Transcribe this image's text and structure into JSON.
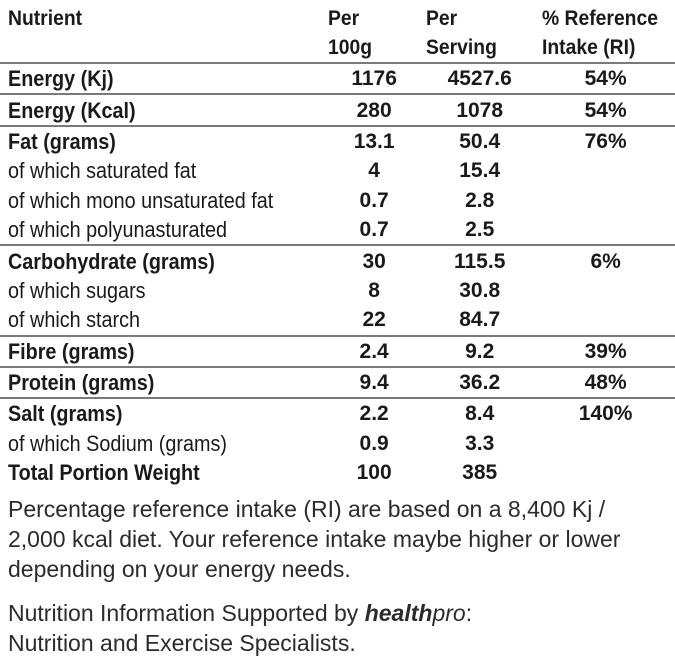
{
  "header": {
    "nutrient": "Nutrient",
    "per100_line1": "Per",
    "per100_line2": "100g",
    "perserving_line1": "Per",
    "perserving_line2": "Serving",
    "ri_line1": "% Reference",
    "ri_line2": "Intake (RI)"
  },
  "rows": [
    {
      "name": "Energy (Kj)",
      "per100": "1176",
      "perserving": "4527.6",
      "ri": "54%",
      "bold": true,
      "sep": true
    },
    {
      "name": "Energy (Kcal)",
      "per100": "280",
      "perserving": "1078",
      "ri": "54%",
      "bold": true,
      "sep": true
    },
    {
      "name": "Fat (grams)",
      "per100": "13.1",
      "perserving": "50.4",
      "ri": "76%",
      "bold": true,
      "sep": true
    },
    {
      "name": "of which saturated fat",
      "per100": "4",
      "perserving": "15.4",
      "ri": "",
      "bold": false,
      "sep": false
    },
    {
      "name": "of which mono unsaturated fat",
      "per100": "0.7",
      "perserving": "2.8",
      "ri": "",
      "bold": false,
      "sep": false
    },
    {
      "name": "of which polyunasturated",
      "per100": "0.7",
      "perserving": "2.5",
      "ri": "",
      "bold": false,
      "sep": false
    },
    {
      "name": "Carbohydrate (grams)",
      "per100": "30",
      "perserving": "115.5",
      "ri": "6%",
      "bold": true,
      "sep": true
    },
    {
      "name": "of which sugars",
      "per100": "8",
      "perserving": "30.8",
      "ri": "",
      "bold": false,
      "sep": false
    },
    {
      "name": "of which starch",
      "per100": "22",
      "perserving": "84.7",
      "ri": "",
      "bold": false,
      "sep": false
    },
    {
      "name": "Fibre (grams)",
      "per100": "2.4",
      "perserving": "9.2",
      "ri": "39%",
      "bold": true,
      "sep": true
    },
    {
      "name": "Protein (grams)",
      "per100": "9.4",
      "perserving": "36.2",
      "ri": "48%",
      "bold": true,
      "sep": true
    },
    {
      "name": "Salt (grams)",
      "per100": "2.2",
      "perserving": "8.4",
      "ri": "140%",
      "bold": true,
      "sep": true
    },
    {
      "name": "of which Sodium (grams)",
      "per100": "0.9",
      "perserving": "3.3",
      "ri": "",
      "bold": false,
      "sep": false
    },
    {
      "name": "Total Portion Weight",
      "per100": "100",
      "perserving": "385",
      "ri": "",
      "bold": true,
      "sep": false
    }
  ],
  "footnote": {
    "ri_note": "Percentage reference intake (RI) are based on a 8,400 Kj / 2,000 kcal diet. Your reference intake maybe higher or lower depending on your energy needs.",
    "support_prefix": "Nutrition Information Supported by ",
    "brand_bold": "health",
    "brand_light": "pro",
    "support_suffix": ":",
    "support_line2": "Nutrition and Exercise Specialists."
  }
}
